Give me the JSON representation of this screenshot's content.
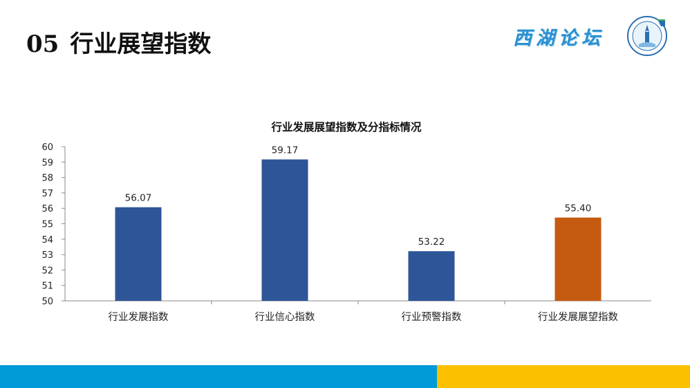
{
  "slide": {
    "number": "05",
    "title": "行业展望指数"
  },
  "brand": {
    "text": "西湖论坛",
    "color": "#2a8fd0"
  },
  "colors": {
    "bar_primary": "#2e5597",
    "bar_highlight": "#c55a11",
    "footer_blue": "#009ad8",
    "footer_yellow": "#fbc000"
  },
  "chart_data": {
    "type": "bar",
    "title": "行业发展展望指数及分指标情况",
    "categories": [
      "行业发展指数",
      "行业信心指数",
      "行业预警指数",
      "行业发展展望指数"
    ],
    "values": [
      56.07,
      59.17,
      53.22,
      55.4
    ],
    "labels": [
      "56.07",
      "59.17",
      "53.22",
      "55.40"
    ],
    "highlight_index": 3,
    "ylim": [
      50,
      60
    ],
    "yticks": [
      "50",
      "51",
      "52",
      "53",
      "54",
      "55",
      "56",
      "57",
      "58",
      "59",
      "60"
    ],
    "grid": false,
    "legend": false
  }
}
